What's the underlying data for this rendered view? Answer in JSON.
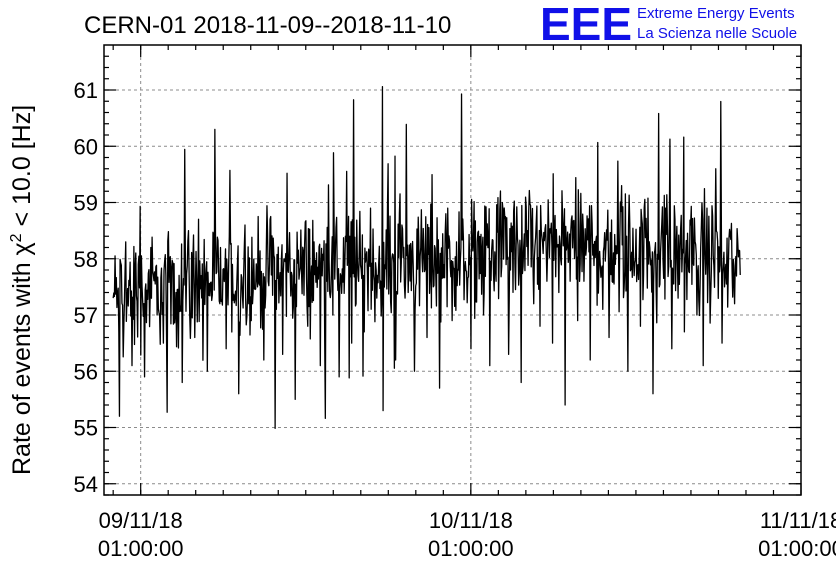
{
  "chart_data": {
    "type": "line",
    "title": "CERN-01 2018-11-09--2018-11-10",
    "ylabel": {
      "before": "Rate of events with ",
      "symbol": "χ",
      "exponent": "2",
      "after": " < 10.0 [Hz]"
    },
    "xlabel": "",
    "ylim": [
      53.8,
      61.8
    ],
    "yticks": [
      54,
      55,
      56,
      57,
      58,
      59,
      60,
      61
    ],
    "xlim": [
      "2018-11-08T22:20:00",
      "2018-11-11T01:00:00"
    ],
    "xticks": [
      {
        "date": "09/11/18",
        "time": "01:00:00",
        "at": "2018-11-09T01:00:00"
      },
      {
        "date": "10/11/18",
        "time": "01:00:00",
        "at": "2018-11-10T01:00:00"
      },
      {
        "date": "11/11/18",
        "time": "01:00:00",
        "at": "2018-11-11T01:00:00"
      }
    ],
    "grid": true,
    "series": [
      {
        "x_start": "2018-11-08T23:00:00",
        "x_end": "2018-11-10T20:35:00",
        "values": [
          57.3,
          55.2,
          58.3,
          56.1,
          57.9,
          55.9,
          58.2,
          57.0,
          56.5,
          58.0,
          57.4,
          55.8,
          58.5,
          56.6,
          57.7,
          56.0,
          58.4,
          57.2,
          56.4,
          57.9,
          55.6,
          58.6,
          56.9,
          57.5,
          56.2,
          58.7,
          57.1,
          56.3,
          58.1,
          55.5,
          57.8,
          56.8,
          58.3,
          56.1,
          57.6,
          57.0,
          55.9,
          58.4,
          56.5,
          57.7,
          56.7,
          58.9,
          57.3,
          55.3,
          57.9,
          56.2,
          58.6,
          57.4,
          56.0,
          58.2,
          56.6,
          57.5,
          55.7,
          58.8,
          56.9,
          57.8,
          56.4,
          58.3,
          57.0,
          56.1,
          57.6,
          59.0,
          56.3,
          57.9,
          55.8,
          58.5,
          57.2,
          56.8,
          58.1,
          56.5,
          57.4,
          55.4,
          58.7,
          56.9,
          57.6,
          56.2,
          58.4,
          57.1,
          56.6,
          57.9,
          59.3,
          56.0,
          57.7,
          56.8,
          58.2,
          55.6,
          57.5,
          58.9,
          56.4,
          57.3,
          56.7,
          58.6,
          57.0,
          56.1,
          58.0,
          59.6,
          56.5,
          57.8,
          57.2,
          58.4
        ],
        "noise_amplitude": 0.9,
        "trend": [
          57.3,
          57.6,
          57.8,
          57.9,
          58.1,
          58.3,
          58.2,
          57.9
        ]
      }
    ]
  },
  "logo": {
    "letters": "EEE",
    "line1": "Extreme Energy Events",
    "line2": "La Scienza nelle Scuole"
  }
}
